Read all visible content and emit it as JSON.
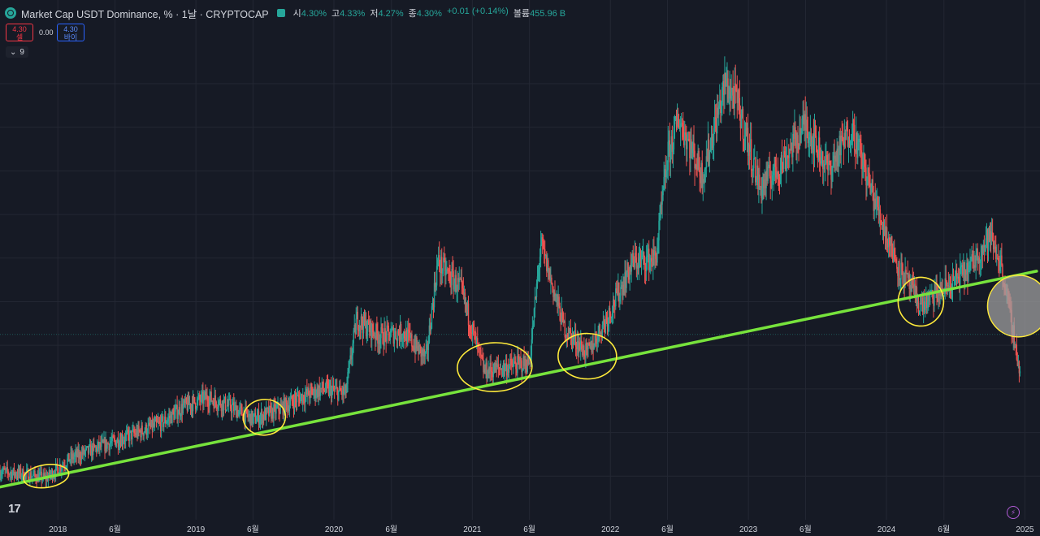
{
  "header": {
    "title": "Market Cap USDT Dominance, % · 1날 · CRYPTOCAP",
    "ohlc": [
      {
        "label": "시",
        "value": "4.30%"
      },
      {
        "label": "고",
        "value": "4.33%"
      },
      {
        "label": "저",
        "value": "4.27%"
      },
      {
        "label": "종",
        "value": "4.30%"
      },
      {
        "label": "",
        "value": "+0.01 (+0.14%)"
      },
      {
        "label": "볼륨",
        "value": "455.96 B"
      }
    ]
  },
  "trade": {
    "sell_price": "4.30",
    "sell_label": "셀",
    "spread": "0.00",
    "buy_price": "4.30",
    "buy_label": "바이"
  },
  "indicators_count": "9",
  "logo_text": "17",
  "colors": {
    "up": "#26a69a",
    "down": "#ef5350",
    "trendline": "#77e33c",
    "circle": "#ffeb3b",
    "background": "#161a25"
  },
  "chart_data": {
    "type": "candlestick",
    "x_ticks": [
      "2018",
      "6월",
      "2019",
      "6월",
      "2020",
      "6월",
      "2021",
      "6월",
      "2022",
      "6월",
      "2023",
      "6월",
      "2024",
      "6월",
      "2025"
    ],
    "series": [
      {
        "values": [
          {
            "date": "2017-08",
            "value": 2.1
          },
          {
            "date": "2017-10",
            "value": 2.05
          },
          {
            "date": "2017-12",
            "value": 1.95
          },
          {
            "date": "2018-02",
            "value": 2.4
          },
          {
            "date": "2018-04",
            "value": 2.6
          },
          {
            "date": "2018-06",
            "value": 2.8
          },
          {
            "date": "2018-08",
            "value": 3.0
          },
          {
            "date": "2018-10",
            "value": 3.2
          },
          {
            "date": "2018-12",
            "value": 3.6
          },
          {
            "date": "2019-02",
            "value": 3.8
          },
          {
            "date": "2019-04",
            "value": 3.6
          },
          {
            "date": "2019-06",
            "value": 3.3
          },
          {
            "date": "2019-08",
            "value": 3.5
          },
          {
            "date": "2019-10",
            "value": 3.8
          },
          {
            "date": "2019-12",
            "value": 4.0
          },
          {
            "date": "2020-02",
            "value": 3.9
          },
          {
            "date": "2020-03",
            "value": 5.6
          },
          {
            "date": "2020-05",
            "value": 5.2
          },
          {
            "date": "2020-07",
            "value": 5.3
          },
          {
            "date": "2020-09",
            "value": 4.7
          },
          {
            "date": "2020-10",
            "value": 6.9
          },
          {
            "date": "2020-12",
            "value": 6.3
          },
          {
            "date": "2021-02",
            "value": 4.4
          },
          {
            "date": "2021-04",
            "value": 4.5
          },
          {
            "date": "2021-06",
            "value": 4.6
          },
          {
            "date": "2021-07",
            "value": 7.3
          },
          {
            "date": "2021-09",
            "value": 5.4
          },
          {
            "date": "2021-11",
            "value": 4.8
          },
          {
            "date": "2022-01",
            "value": 5.8
          },
          {
            "date": "2022-03",
            "value": 6.9
          },
          {
            "date": "2022-05",
            "value": 7.0
          },
          {
            "date": "2022-06",
            "value": 9.3
          },
          {
            "date": "2022-07",
            "value": 10.2
          },
          {
            "date": "2022-09",
            "value": 8.9
          },
          {
            "date": "2022-11",
            "value": 11.0
          },
          {
            "date": "2022-12",
            "value": 10.6
          },
          {
            "date": "2023-02",
            "value": 8.6
          },
          {
            "date": "2023-04",
            "value": 9.2
          },
          {
            "date": "2023-06",
            "value": 10.1
          },
          {
            "date": "2023-08",
            "value": 9.0
          },
          {
            "date": "2023-10",
            "value": 10.0
          },
          {
            "date": "2023-12",
            "value": 8.3
          },
          {
            "date": "2024-02",
            "value": 6.8
          },
          {
            "date": "2024-04",
            "value": 5.9
          },
          {
            "date": "2024-06",
            "value": 6.3
          },
          {
            "date": "2024-08",
            "value": 6.7
          },
          {
            "date": "2024-10",
            "value": 7.5
          },
          {
            "date": "2024-11",
            "value": 6.8
          },
          {
            "date": "2024-12",
            "value": 5.3
          },
          {
            "date": "2024-12-20",
            "value": 4.3
          }
        ]
      }
    ],
    "annotations": {
      "trendline": {
        "from": {
          "date": "2017-08",
          "value": 1.75
        },
        "to": {
          "date": "2025-02",
          "value": 6.7
        }
      },
      "circles": [
        {
          "date": "2017-12",
          "value": 2.0
        },
        {
          "date": "2019-07",
          "value": 3.35
        },
        {
          "date": "2021-03",
          "value": 4.5
        },
        {
          "date": "2021-11",
          "value": 4.75
        },
        {
          "date": "2024-04",
          "value": 6.0
        },
        {
          "date": "2024-12-15",
          "value": 5.9
        }
      ]
    },
    "grid": true,
    "current_price_line": true
  }
}
